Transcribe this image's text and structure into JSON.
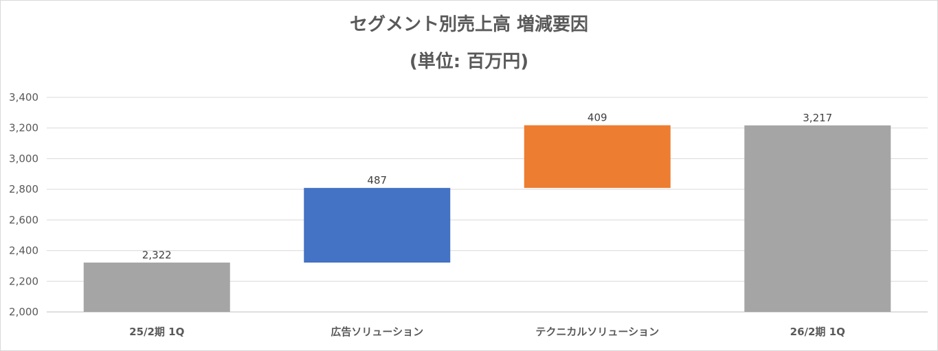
{
  "chart_data": {
    "type": "bar",
    "subtype": "waterfall",
    "title": "セグメント別売上高 増減要因",
    "subtitle": "(単位: 百万円)",
    "categories": [
      "25/2期 1Q",
      "広告ソリューション",
      "テクニカルソリューション",
      "26/2期 1Q"
    ],
    "values": [
      2322,
      487,
      409,
      3217
    ],
    "bar_kinds": [
      "total",
      "increase",
      "increase",
      "total"
    ],
    "data_labels": [
      "2,322",
      "487",
      "409",
      "3,217"
    ],
    "ylim": [
      2000,
      3400
    ],
    "yticks": [
      2000,
      2200,
      2400,
      2600,
      2800,
      3000,
      3200,
      3400
    ],
    "ytick_labels": [
      "2,000",
      "2,200",
      "2,400",
      "2,600",
      "2,800",
      "3,000",
      "3,200",
      "3,400"
    ],
    "grid": true,
    "legend": "none",
    "colors": {
      "total": "#a5a5a5",
      "广告": "#4472c4",
      "increase_1": "#4472c4",
      "increase_2": "#ed7d31",
      "grid": "#d9d9d9",
      "axis": "#bfbfbf"
    }
  }
}
